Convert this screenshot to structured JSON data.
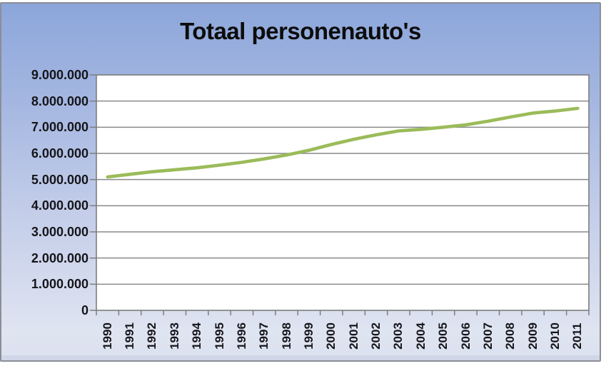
{
  "chart": {
    "colors": {
      "background_top": "#8ca6da",
      "background_bottom": "#dfe4f1",
      "chart_border": "#8a8e96",
      "plot_background": "#ffffff",
      "gridline": "#898989",
      "axis": "#7d7d7d",
      "series_line": "#9bbb59",
      "text": "#0c0c0c"
    }
  },
  "chart_data": {
    "type": "line",
    "title": "Totaal personenauto's",
    "xlabel": "",
    "ylabel": "",
    "x": [
      "1990",
      "1991",
      "1992",
      "1993",
      "1994",
      "1995",
      "1996",
      "1997",
      "1998",
      "1999",
      "2000",
      "2001",
      "2002",
      "2003",
      "2004",
      "2005",
      "2006",
      "2007",
      "2008",
      "2009",
      "2010",
      "2011"
    ],
    "series": [
      {
        "name": "Totaal personenauto's",
        "color": "#9bbb59",
        "values": [
          5100000,
          5200000,
          5300000,
          5375000,
          5450000,
          5550000,
          5660000,
          5790000,
          5940000,
          6120000,
          6340000,
          6540000,
          6710000,
          6860000,
          6920000,
          7000000,
          7090000,
          7230000,
          7390000,
          7540000,
          7620000,
          7720000
        ]
      }
    ],
    "ylim": [
      0,
      9000000
    ],
    "ytick_interval": 1000000,
    "ytick_labels": [
      "0",
      "1.000.000",
      "2.000.000",
      "3.000.000",
      "4.000.000",
      "5.000.000",
      "6.000.000",
      "7.000.000",
      "8.000.000",
      "9.000.000"
    ],
    "grid": "horizontal",
    "legend_position": "none",
    "x_labels_rotated_degrees": 90
  }
}
